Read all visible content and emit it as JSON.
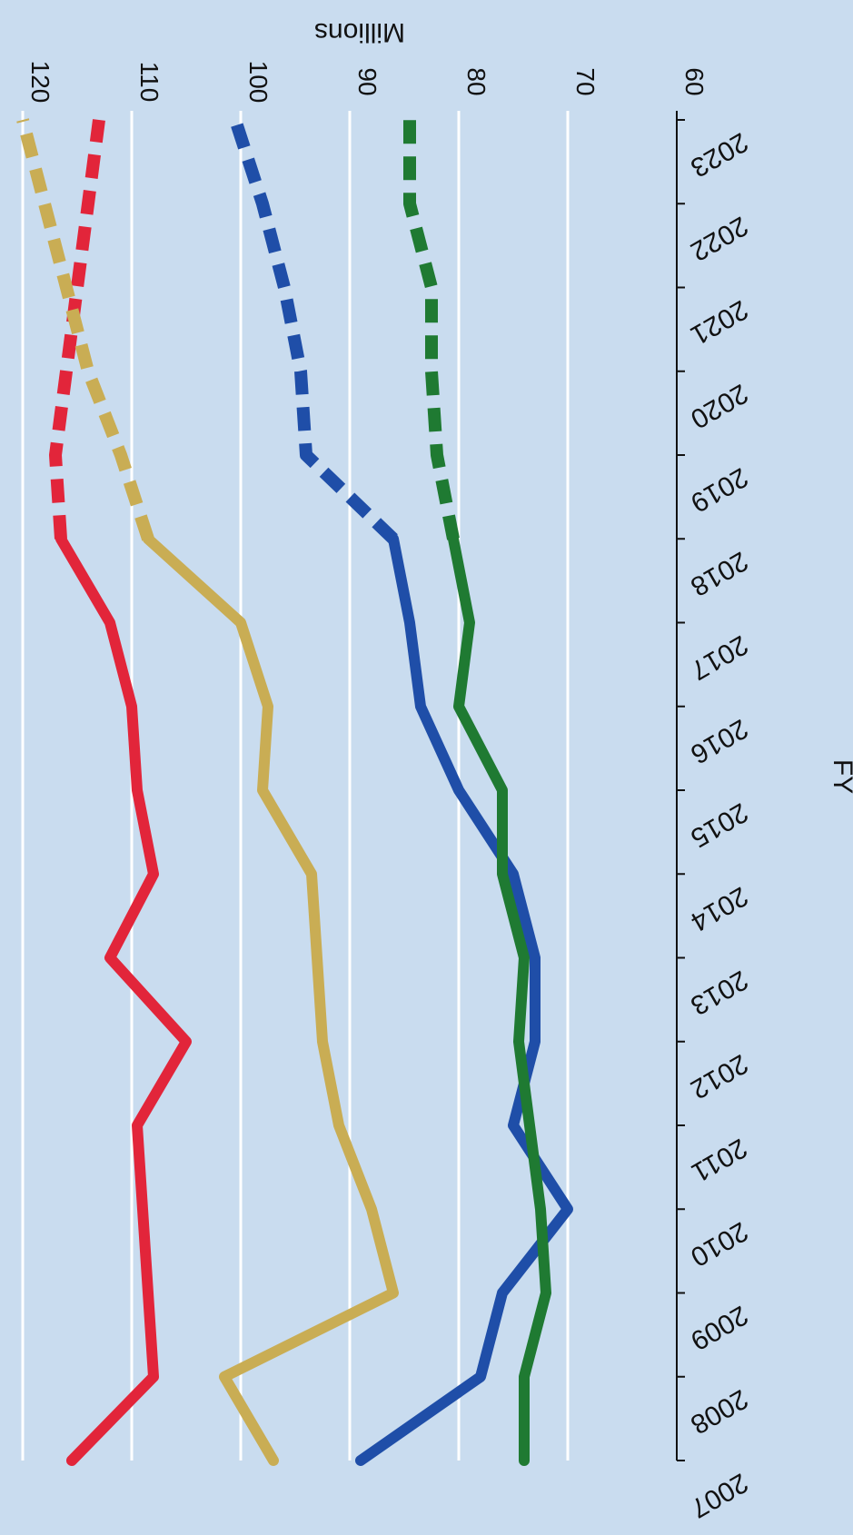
{
  "chart_data": {
    "type": "line",
    "ylabel": "Millions",
    "xlabel": "FY",
    "x": [
      2007,
      2008,
      2009,
      2010,
      2011,
      2012,
      2013,
      2014,
      2015,
      2016,
      2017,
      2018,
      2019,
      2020,
      2021,
      2022,
      2023
    ],
    "ylim": [
      60,
      120
    ],
    "yticks": [
      60,
      70,
      80,
      90,
      100,
      110,
      120
    ],
    "grid": true,
    "series": [
      {
        "color": "#e2253a",
        "actual": [
          [
            2007,
            115.5
          ],
          [
            2008,
            108
          ],
          [
            2009,
            108.5
          ],
          [
            2010,
            109
          ],
          [
            2011,
            109.5
          ],
          [
            2012,
            105
          ],
          [
            2013,
            112
          ],
          [
            2014,
            108
          ],
          [
            2015,
            109.5
          ],
          [
            2016,
            110
          ],
          [
            2017,
            112
          ],
          [
            2018,
            116.5
          ]
        ],
        "projected": [
          [
            2018,
            116.5
          ],
          [
            2019,
            117
          ],
          [
            2020,
            116
          ],
          [
            2021,
            115
          ],
          [
            2022,
            114
          ],
          [
            2023,
            113
          ]
        ]
      },
      {
        "color": "#c9ad54",
        "actual": [
          [
            2007,
            97
          ],
          [
            2008,
            101.5
          ],
          [
            2009,
            86
          ],
          [
            2010,
            88
          ],
          [
            2011,
            91
          ],
          [
            2012,
            92.5
          ],
          [
            2013,
            93
          ],
          [
            2014,
            93.5
          ],
          [
            2015,
            98
          ],
          [
            2016,
            97.5
          ],
          [
            2017,
            100
          ],
          [
            2018,
            108.5
          ]
        ],
        "projected": [
          [
            2018,
            108.5
          ],
          [
            2019,
            111
          ],
          [
            2020,
            114
          ],
          [
            2021,
            116
          ],
          [
            2022,
            118
          ],
          [
            2023,
            120
          ]
        ]
      },
      {
        "color": "#1f4ea8",
        "actual": [
          [
            2007,
            89
          ],
          [
            2008,
            78
          ],
          [
            2009,
            76
          ],
          [
            2010,
            70
          ],
          [
            2011,
            75
          ],
          [
            2012,
            73
          ],
          [
            2013,
            73
          ],
          [
            2014,
            75
          ],
          [
            2015,
            80
          ],
          [
            2016,
            83.5
          ],
          [
            2017,
            84.5
          ],
          [
            2018,
            86
          ]
        ],
        "projected": [
          [
            2018,
            86
          ],
          [
            2019,
            94
          ],
          [
            2020,
            94.5
          ],
          [
            2021,
            96
          ],
          [
            2022,
            98
          ],
          [
            2023,
            100.5
          ]
        ]
      },
      {
        "color": "#1f7a32",
        "actual": [
          [
            2007,
            74
          ],
          [
            2008,
            74
          ],
          [
            2009,
            72
          ],
          [
            2010,
            72.5
          ],
          [
            2011,
            73.5
          ],
          [
            2012,
            74.5
          ],
          [
            2013,
            74
          ],
          [
            2014,
            76
          ],
          [
            2015,
            76
          ],
          [
            2016,
            80
          ],
          [
            2017,
            79
          ],
          [
            2018,
            80.5
          ]
        ],
        "projected": [
          [
            2018,
            80.5
          ],
          [
            2019,
            82
          ],
          [
            2020,
            82.5
          ],
          [
            2021,
            82.5
          ],
          [
            2022,
            84.5
          ],
          [
            2023,
            84.5
          ]
        ]
      }
    ]
  }
}
